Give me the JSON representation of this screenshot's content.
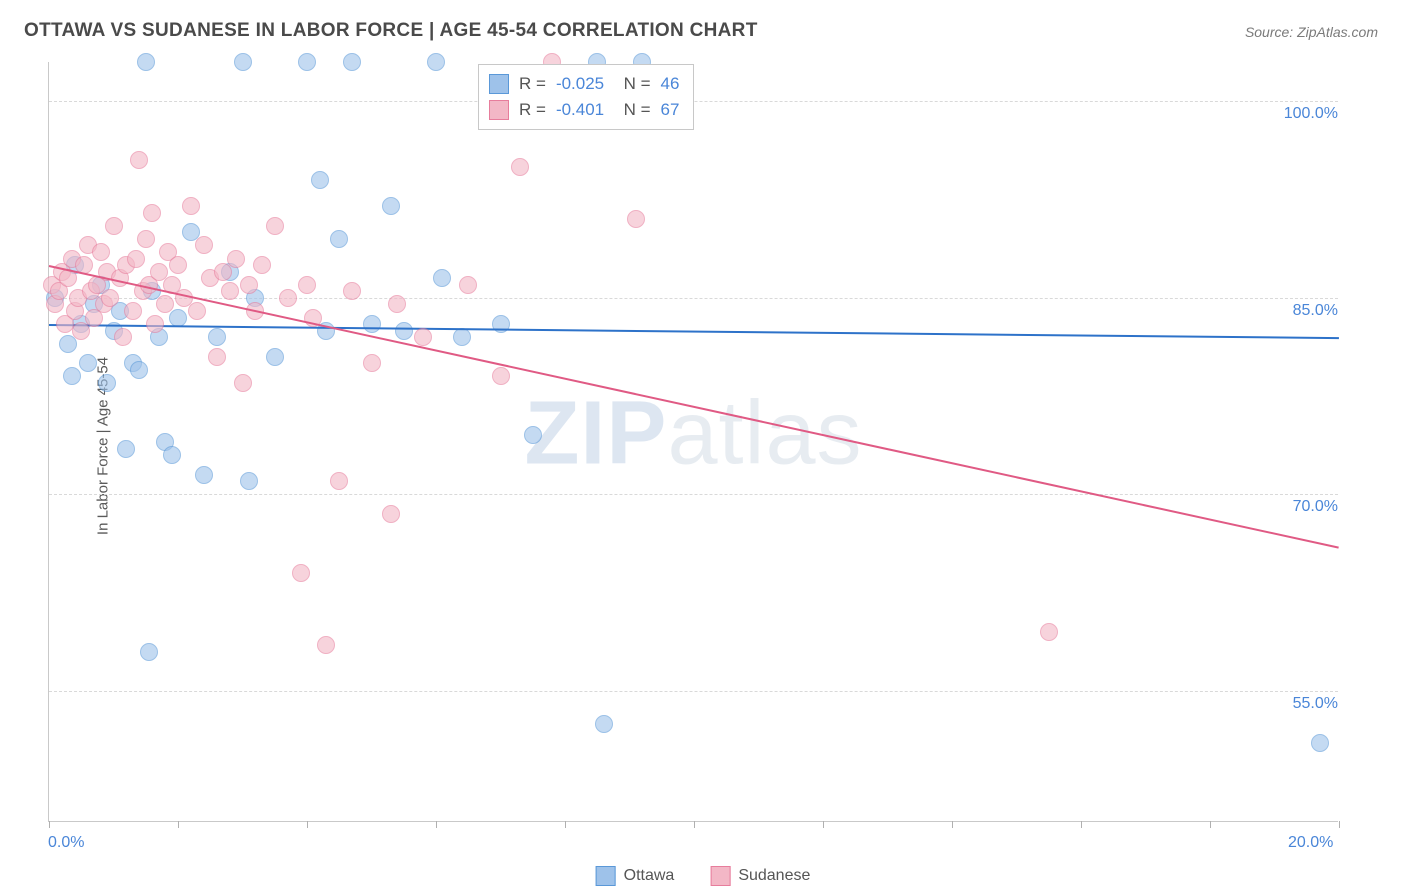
{
  "title": "OTTAWA VS SUDANESE IN LABOR FORCE | AGE 45-54 CORRELATION CHART",
  "source": "Source: ZipAtlas.com",
  "ylabel": "In Labor Force | Age 45-54",
  "watermark_a": "ZIP",
  "watermark_b": "atlas",
  "chart": {
    "type": "scatter",
    "x_min": 0.0,
    "x_max": 20.0,
    "y_min": 45.0,
    "y_max": 103.0,
    "y_gridlines": [
      55.0,
      70.0,
      85.0,
      100.0
    ],
    "y_tick_labels": [
      "55.0%",
      "70.0%",
      "85.0%",
      "100.0%"
    ],
    "x_ticks": [
      0.0,
      2.0,
      4.0,
      6.0,
      8.0,
      10.0,
      12.0,
      14.0,
      16.0,
      18.0,
      20.0
    ],
    "x_tick_labels": {
      "0": "0.0%",
      "20": "20.0%"
    },
    "background_color": "#ffffff",
    "grid_color": "#d9d9d9",
    "axis_color": "#c9c9c9",
    "tick_font_color": "#4a86d8",
    "marker_radius": 9,
    "marker_opacity_fill": 0.35,
    "marker_opacity_stroke": 0.9,
    "series": [
      {
        "name": "Ottawa",
        "fill_color": "#9ec2ea",
        "stroke_color": "#5a98d8",
        "line_color": "#2d72c9",
        "R": "-0.025",
        "N": "46",
        "trend": {
          "x1": 0.0,
          "y1": 83.0,
          "x2": 20.0,
          "y2": 82.0
        },
        "points": [
          [
            0.1,
            85.0
          ],
          [
            0.3,
            81.5
          ],
          [
            0.35,
            79.0
          ],
          [
            0.4,
            87.5
          ],
          [
            0.5,
            83.0
          ],
          [
            0.6,
            80.0
          ],
          [
            0.7,
            84.5
          ],
          [
            0.8,
            86.0
          ],
          [
            0.9,
            78.5
          ],
          [
            1.0,
            82.5
          ],
          [
            1.1,
            84.0
          ],
          [
            1.2,
            73.5
          ],
          [
            1.3,
            80.0
          ],
          [
            1.4,
            79.5
          ],
          [
            1.5,
            103.0
          ],
          [
            1.55,
            58.0
          ],
          [
            1.6,
            85.5
          ],
          [
            1.7,
            82.0
          ],
          [
            1.8,
            74.0
          ],
          [
            1.9,
            73.0
          ],
          [
            2.0,
            83.5
          ],
          [
            2.2,
            90.0
          ],
          [
            2.4,
            71.5
          ],
          [
            2.6,
            82.0
          ],
          [
            2.8,
            87.0
          ],
          [
            3.0,
            103.0
          ],
          [
            3.1,
            71.0
          ],
          [
            3.2,
            85.0
          ],
          [
            3.5,
            80.5
          ],
          [
            4.0,
            103.0
          ],
          [
            4.2,
            94.0
          ],
          [
            4.3,
            82.5
          ],
          [
            4.5,
            89.5
          ],
          [
            4.7,
            103.0
          ],
          [
            5.0,
            83.0
          ],
          [
            5.3,
            92.0
          ],
          [
            5.5,
            82.5
          ],
          [
            6.0,
            103.0
          ],
          [
            6.1,
            86.5
          ],
          [
            6.4,
            82.0
          ],
          [
            7.0,
            83.0
          ],
          [
            7.5,
            74.5
          ],
          [
            8.5,
            103.0
          ],
          [
            8.6,
            52.5
          ],
          [
            9.2,
            103.0
          ],
          [
            19.7,
            51.0
          ]
        ]
      },
      {
        "name": "Sudanese",
        "fill_color": "#f3b7c6",
        "stroke_color": "#e77d9c",
        "line_color": "#e05a84",
        "R": "-0.401",
        "N": "67",
        "trend": {
          "x1": 0.0,
          "y1": 87.5,
          "x2": 20.0,
          "y2": 66.0
        },
        "points": [
          [
            0.05,
            86.0
          ],
          [
            0.1,
            84.5
          ],
          [
            0.15,
            85.5
          ],
          [
            0.2,
            87.0
          ],
          [
            0.25,
            83.0
          ],
          [
            0.3,
            86.5
          ],
          [
            0.35,
            88.0
          ],
          [
            0.4,
            84.0
          ],
          [
            0.45,
            85.0
          ],
          [
            0.5,
            82.5
          ],
          [
            0.55,
            87.5
          ],
          [
            0.6,
            89.0
          ],
          [
            0.65,
            85.5
          ],
          [
            0.7,
            83.5
          ],
          [
            0.75,
            86.0
          ],
          [
            0.8,
            88.5
          ],
          [
            0.85,
            84.5
          ],
          [
            0.9,
            87.0
          ],
          [
            0.95,
            85.0
          ],
          [
            1.0,
            90.5
          ],
          [
            1.1,
            86.5
          ],
          [
            1.15,
            82.0
          ],
          [
            1.2,
            87.5
          ],
          [
            1.3,
            84.0
          ],
          [
            1.35,
            88.0
          ],
          [
            1.4,
            95.5
          ],
          [
            1.45,
            85.5
          ],
          [
            1.5,
            89.5
          ],
          [
            1.55,
            86.0
          ],
          [
            1.6,
            91.5
          ],
          [
            1.65,
            83.0
          ],
          [
            1.7,
            87.0
          ],
          [
            1.8,
            84.5
          ],
          [
            1.85,
            88.5
          ],
          [
            1.9,
            86.0
          ],
          [
            2.0,
            87.5
          ],
          [
            2.1,
            85.0
          ],
          [
            2.2,
            92.0
          ],
          [
            2.3,
            84.0
          ],
          [
            2.4,
            89.0
          ],
          [
            2.5,
            86.5
          ],
          [
            2.6,
            80.5
          ],
          [
            2.7,
            87.0
          ],
          [
            2.8,
            85.5
          ],
          [
            2.9,
            88.0
          ],
          [
            3.0,
            78.5
          ],
          [
            3.1,
            86.0
          ],
          [
            3.2,
            84.0
          ],
          [
            3.3,
            87.5
          ],
          [
            3.5,
            90.5
          ],
          [
            3.7,
            85.0
          ],
          [
            3.9,
            64.0
          ],
          [
            4.0,
            86.0
          ],
          [
            4.1,
            83.5
          ],
          [
            4.3,
            58.5
          ],
          [
            4.5,
            71.0
          ],
          [
            4.7,
            85.5
          ],
          [
            5.0,
            80.0
          ],
          [
            5.3,
            68.5
          ],
          [
            5.4,
            84.5
          ],
          [
            5.8,
            82.0
          ],
          [
            6.5,
            86.0
          ],
          [
            7.0,
            79.0
          ],
          [
            7.3,
            95.0
          ],
          [
            7.8,
            103.0
          ],
          [
            9.1,
            91.0
          ],
          [
            15.5,
            59.5
          ]
        ]
      }
    ]
  },
  "bottom_legend": [
    {
      "label": "Ottawa",
      "fill": "#9ec2ea",
      "stroke": "#5a98d8"
    },
    {
      "label": "Sudanese",
      "fill": "#f3b7c6",
      "stroke": "#e77d9c"
    }
  ]
}
